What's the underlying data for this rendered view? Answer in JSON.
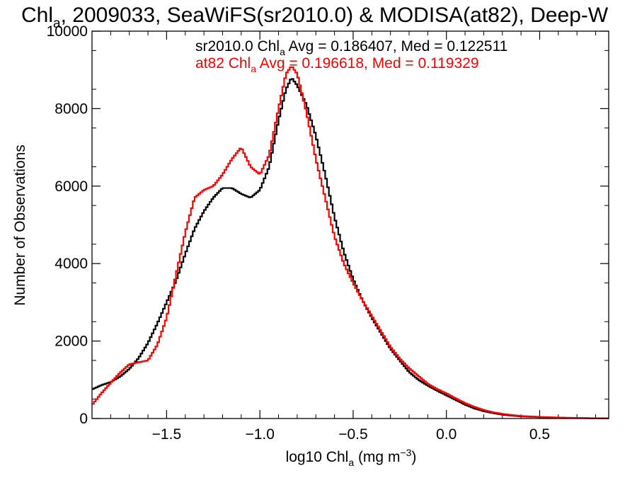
{
  "chart_data": {
    "type": "line",
    "title": {
      "pre": "Chl",
      "sub": "a",
      "post": ", 2009033, SeaWiFS(sr2010.0) & MODISA(at82), Deep-W"
    },
    "xlabel": {
      "pre": "log10 Chl",
      "sub": "a",
      "unit": " (mg m",
      "sup": "−3",
      "close": ")"
    },
    "ylabel": "Number of Observations",
    "xlim": [
      -1.9,
      0.87
    ],
    "ylim": [
      0,
      10000
    ],
    "x_ticks": [
      -1.5,
      -1.0,
      -0.5,
      0.0,
      0.5
    ],
    "x_tick_labels": [
      "−1.5",
      "−1.0",
      "−0.5",
      "0.0",
      "0.5"
    ],
    "y_ticks": [
      0,
      2000,
      4000,
      6000,
      8000,
      10000
    ],
    "y_tick_labels": [
      "0",
      "2000",
      "4000",
      "6000",
      "8000",
      "10000"
    ],
    "step": "histogram",
    "series": [
      {
        "name": "sr2010.0",
        "color": "#000000",
        "annotation": {
          "pre": "sr2010.0 Chl",
          "sub": "a",
          "post": " Avg = 0.186407, Med = 0.122511"
        },
        "points": [
          [
            -1.9,
            750
          ],
          [
            -1.85,
            860
          ],
          [
            -1.8,
            940
          ],
          [
            -1.75,
            1080
          ],
          [
            -1.7,
            1280
          ],
          [
            -1.65,
            1560
          ],
          [
            -1.6,
            1950
          ],
          [
            -1.55,
            2450
          ],
          [
            -1.5,
            3000
          ],
          [
            -1.45,
            3550
          ],
          [
            -1.4,
            4250
          ],
          [
            -1.35,
            4900
          ],
          [
            -1.3,
            5350
          ],
          [
            -1.25,
            5700
          ],
          [
            -1.2,
            5950
          ],
          [
            -1.15,
            5950
          ],
          [
            -1.1,
            5800
          ],
          [
            -1.05,
            5700
          ],
          [
            -1.0,
            5900
          ],
          [
            -0.95,
            6500
          ],
          [
            -0.9,
            7700
          ],
          [
            -0.86,
            8500
          ],
          [
            -0.83,
            8800
          ],
          [
            -0.8,
            8600
          ],
          [
            -0.75,
            8100
          ],
          [
            -0.7,
            7300
          ],
          [
            -0.65,
            6300
          ],
          [
            -0.6,
            5200
          ],
          [
            -0.55,
            4300
          ],
          [
            -0.5,
            3600
          ],
          [
            -0.45,
            3050
          ],
          [
            -0.4,
            2600
          ],
          [
            -0.35,
            2200
          ],
          [
            -0.3,
            1800
          ],
          [
            -0.25,
            1500
          ],
          [
            -0.2,
            1200
          ],
          [
            -0.15,
            1000
          ],
          [
            -0.1,
            850
          ],
          [
            -0.05,
            720
          ],
          [
            0.0,
            600
          ],
          [
            0.05,
            480
          ],
          [
            0.1,
            360
          ],
          [
            0.15,
            260
          ],
          [
            0.2,
            190
          ],
          [
            0.25,
            140
          ],
          [
            0.3,
            100
          ],
          [
            0.35,
            75
          ],
          [
            0.4,
            55
          ],
          [
            0.5,
            35
          ],
          [
            0.6,
            22
          ],
          [
            0.7,
            12
          ],
          [
            0.8,
            6
          ],
          [
            0.87,
            3
          ]
        ]
      },
      {
        "name": "at82",
        "color": "#ff0000",
        "annotation": {
          "pre": "at82 Chl",
          "sub": "a",
          "post": " Avg = 0.196618, Med = 0.119329"
        },
        "points": [
          [
            -1.9,
            350
          ],
          [
            -1.85,
            650
          ],
          [
            -1.8,
            920
          ],
          [
            -1.75,
            1180
          ],
          [
            -1.7,
            1400
          ],
          [
            -1.65,
            1450
          ],
          [
            -1.6,
            1500
          ],
          [
            -1.55,
            1900
          ],
          [
            -1.5,
            2600
          ],
          [
            -1.45,
            3700
          ],
          [
            -1.4,
            4800
          ],
          [
            -1.35,
            5700
          ],
          [
            -1.3,
            5900
          ],
          [
            -1.25,
            6000
          ],
          [
            -1.2,
            6300
          ],
          [
            -1.15,
            6700
          ],
          [
            -1.1,
            7000
          ],
          [
            -1.05,
            6500
          ],
          [
            -1.0,
            6300
          ],
          [
            -0.95,
            6800
          ],
          [
            -0.9,
            8000
          ],
          [
            -0.86,
            8900
          ],
          [
            -0.83,
            9100
          ],
          [
            -0.8,
            8900
          ],
          [
            -0.75,
            7900
          ],
          [
            -0.7,
            6700
          ],
          [
            -0.65,
            5700
          ],
          [
            -0.6,
            4700
          ],
          [
            -0.55,
            4000
          ],
          [
            -0.5,
            3500
          ],
          [
            -0.45,
            3050
          ],
          [
            -0.4,
            2650
          ],
          [
            -0.35,
            2250
          ],
          [
            -0.3,
            1850
          ],
          [
            -0.25,
            1550
          ],
          [
            -0.2,
            1300
          ],
          [
            -0.15,
            1100
          ],
          [
            -0.1,
            900
          ],
          [
            -0.05,
            760
          ],
          [
            0.0,
            650
          ],
          [
            0.05,
            520
          ],
          [
            0.1,
            400
          ],
          [
            0.15,
            300
          ],
          [
            0.2,
            220
          ],
          [
            0.25,
            160
          ],
          [
            0.3,
            120
          ],
          [
            0.35,
            90
          ],
          [
            0.4,
            65
          ],
          [
            0.5,
            42
          ],
          [
            0.6,
            26
          ],
          [
            0.7,
            15
          ],
          [
            0.8,
            8
          ],
          [
            0.87,
            4
          ]
        ]
      }
    ]
  }
}
